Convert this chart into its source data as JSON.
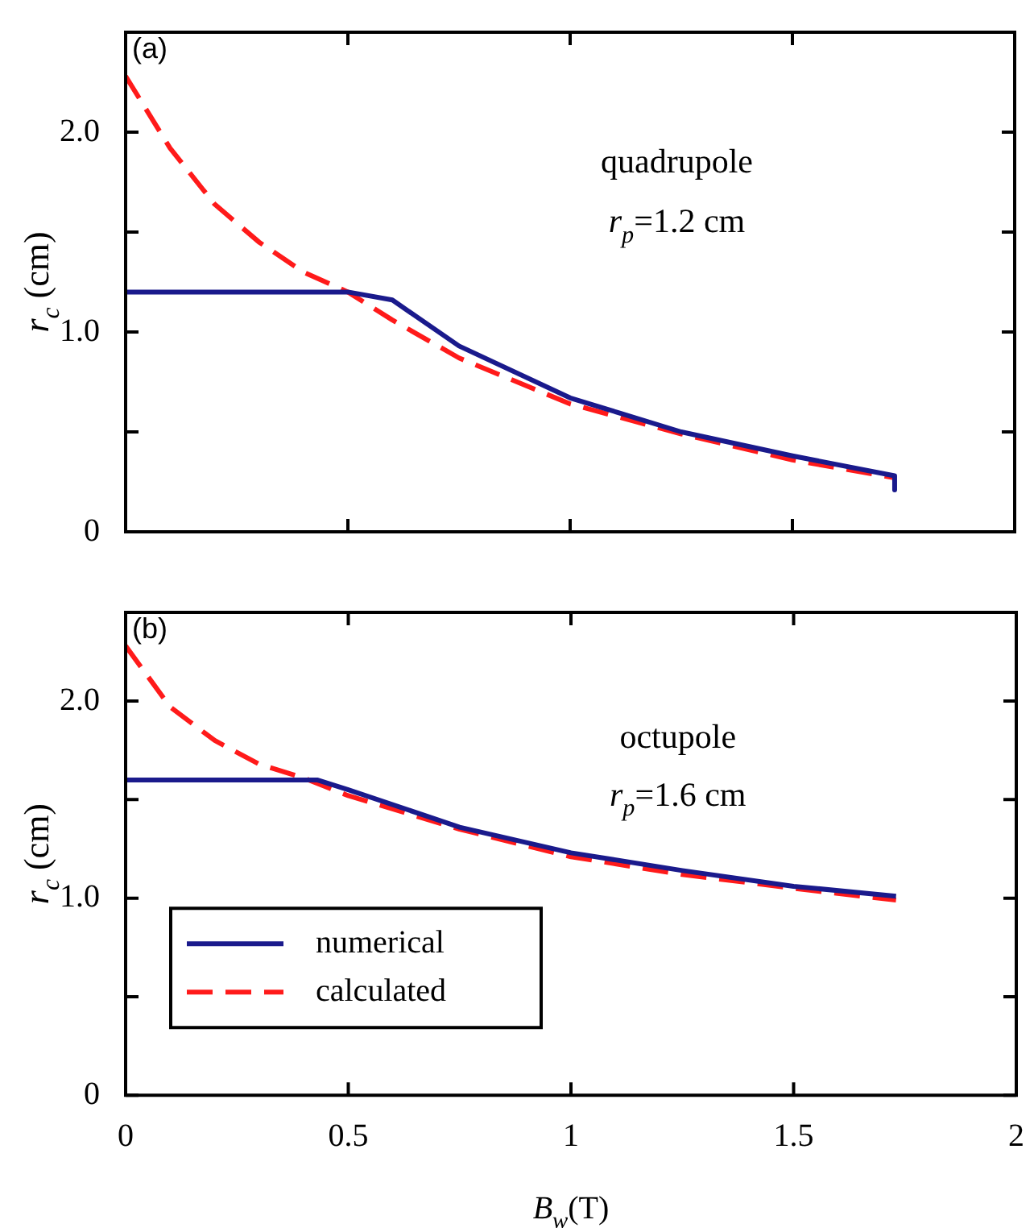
{
  "chart_data": [
    {
      "type": "line",
      "xlabel": null,
      "ylabel": "r$_{c}$ (cm)",
      "xlim": [
        0,
        2
      ],
      "ylim": [
        0,
        2.5
      ],
      "xticks": [
        0,
        0.5,
        1,
        1.5,
        2
      ],
      "yticks": [
        0,
        {
          "value": 0.5,
          "label": null
        },
        {
          "value": 1,
          "label": "1.0"
        },
        {
          "value": 1.5,
          "label": null
        },
        {
          "value": 2,
          "label": "2.0"
        }
      ],
      "tick_labels": "y",
      "grid": false,
      "legend": false,
      "marker": "none",
      "annotations": [
        "(a)",
        "quadrupole",
        "r$_{p}$=1.2 cm"
      ],
      "series": [
        {
          "color": "#1a1a8c",
          "line_style": "solid",
          "x": [
            0,
            0.5,
            0.6,
            0.75,
            1,
            1.25,
            1.5,
            1.73,
            1.73
          ],
          "values": [
            1.2,
            1.2,
            1.16,
            0.93,
            0.67,
            0.5,
            0.38,
            0.28,
            0.21
          ]
        },
        {
          "color": "#ff1a1a",
          "line_style": "dashed",
          "x": [
            0,
            0.1,
            0.2,
            0.3,
            0.4,
            0.5,
            0.6,
            0.75,
            1,
            1.25,
            1.5,
            1.73
          ],
          "values": [
            2.28,
            1.92,
            1.64,
            1.45,
            1.3,
            1.2,
            1.06,
            0.87,
            0.64,
            0.49,
            0.36,
            0.27
          ]
        }
      ]
    },
    {
      "type": "line",
      "xlabel": "B$_{w}$(T)",
      "ylabel": "r$_{c}$ (cm)",
      "xlim": [
        0,
        2
      ],
      "ylim": [
        0,
        2.45
      ],
      "xticks": [
        0,
        0.5,
        1,
        1.5,
        2
      ],
      "yticks": [
        0,
        {
          "value": 0.5,
          "label": null
        },
        {
          "value": 1,
          "label": "1.0"
        },
        {
          "value": 1.5,
          "label": null
        },
        {
          "value": 2,
          "label": "2.0"
        }
      ],
      "grid": false,
      "legend": "bottom left",
      "marker": "none",
      "annotations": [
        "(b)",
        "octupole",
        "r$_{p}$=1.6 cm"
      ],
      "series": [
        {
          "name": "numerical",
          "color": "#1a1a8c",
          "line_style": "solid",
          "x": [
            0,
            0.43,
            0.5,
            0.75,
            1,
            1.25,
            1.5,
            1.73
          ],
          "values": [
            1.6,
            1.6,
            1.55,
            1.36,
            1.23,
            1.14,
            1.06,
            1.01
          ]
        },
        {
          "name": "calculated",
          "color": "#ff1a1a",
          "line_style": "dashed",
          "x": [
            0,
            0.1,
            0.2,
            0.3,
            0.4,
            0.5,
            0.75,
            1,
            1.25,
            1.5,
            1.73
          ],
          "values": [
            2.28,
            1.97,
            1.8,
            1.68,
            1.61,
            1.52,
            1.35,
            1.21,
            1.12,
            1.05,
            0.99
          ]
        }
      ]
    }
  ]
}
